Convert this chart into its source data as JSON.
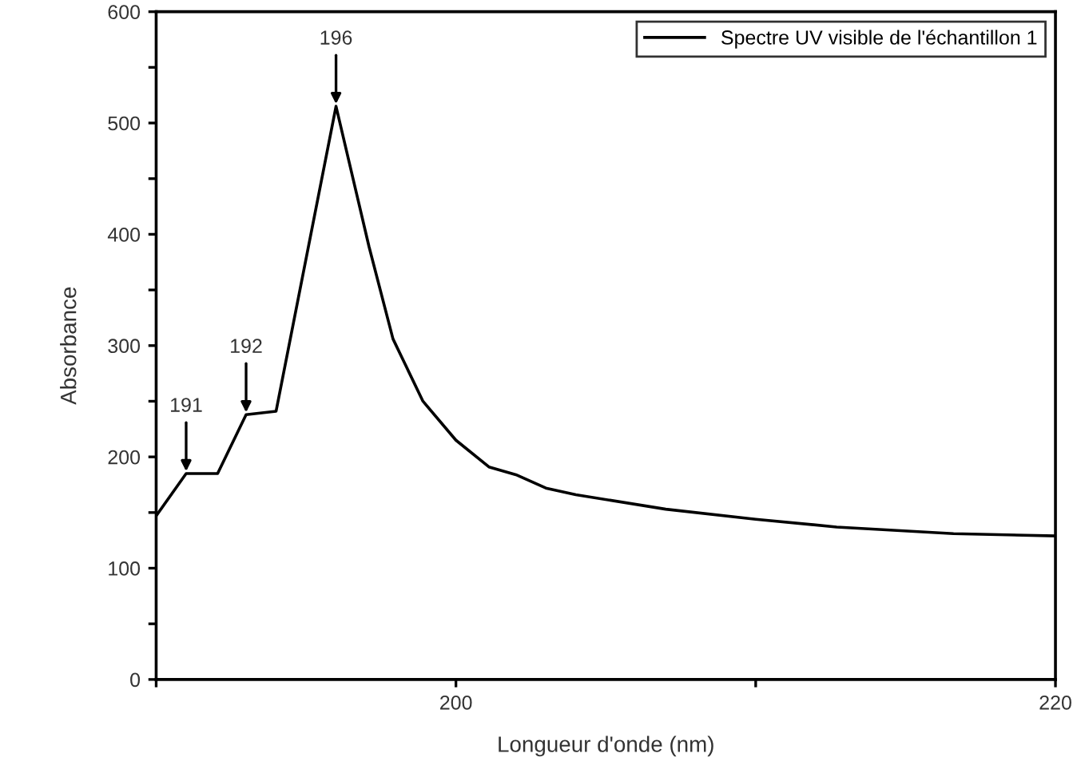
{
  "chart_data": {
    "type": "line",
    "xlabel": "Longueur d'onde (nm)",
    "ylabel": "Absorbance",
    "xlim": [
      190,
      220
    ],
    "ylim": [
      0,
      600
    ],
    "xticks": [
      {
        "value": 190,
        "label": null
      },
      200,
      {
        "value": 210,
        "label": null
      },
      220
    ],
    "yticks": [
      0,
      {
        "value": 50,
        "label": null
      },
      100,
      {
        "value": 150,
        "label": null
      },
      200,
      {
        "value": 250,
        "label": null
      },
      300,
      {
        "value": 350,
        "label": null
      },
      400,
      {
        "value": 450,
        "label": null
      },
      500,
      {
        "value": 550,
        "label": null
      },
      600
    ],
    "grid": false,
    "legend": "top right",
    "marker": "none",
    "line_style": "solid",
    "series": [
      {
        "name": "Spectre UV visible de l'échantillon 1",
        "color": "#000000",
        "x": [
          190,
          191,
          192.05,
          193,
          194,
          196,
          197.1,
          197.9,
          198.9,
          200,
          201.1,
          202,
          203,
          204,
          207,
          210,
          212.7,
          216.6,
          220
        ],
        "values": [
          147,
          185,
          185,
          238,
          241,
          515,
          389,
          306,
          250,
          215,
          191,
          184,
          172,
          166,
          153,
          144,
          137,
          131,
          129
        ]
      }
    ],
    "annotations": [
      {
        "text": "191",
        "x": 191,
        "y": 185
      },
      {
        "text": "192",
        "x": 193,
        "y": 238
      },
      {
        "text": "196",
        "x": 196,
        "y": 515
      }
    ]
  }
}
